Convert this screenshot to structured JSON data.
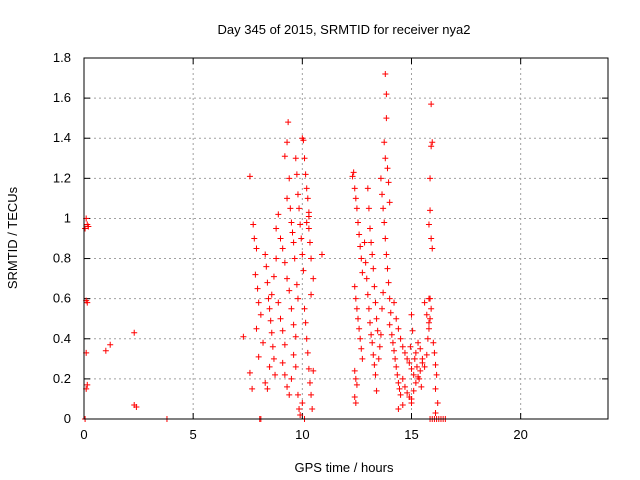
{
  "chart_data": {
    "type": "scatter",
    "title": "Day 345 of 2015, SRMTID for receiver nya2",
    "xlabel": "GPS time / hours",
    "ylabel": "SRMTID / TECUs",
    "xlim": [
      0,
      24
    ],
    "ylim": [
      0,
      1.8
    ],
    "xticks": [
      0,
      5,
      10,
      15,
      20
    ],
    "yticks": [
      0,
      0.2,
      0.4,
      0.6,
      0.8,
      1,
      1.2,
      1.4,
      1.6,
      1.8
    ],
    "xtick_labels": [
      "0",
      "5",
      "10",
      "15",
      "20"
    ],
    "ytick_labels": [
      "0",
      "0.2",
      "0.4",
      "0.6",
      "0.8",
      "1",
      "1.2",
      "1.4",
      "1.6",
      "1.8"
    ],
    "grid": true,
    "marker": "+",
    "color": "#ff0000",
    "points": [
      [
        0.05,
        0.95
      ],
      [
        0.1,
        1.0
      ],
      [
        0.15,
        0.97
      ],
      [
        0.2,
        0.96
      ],
      [
        0.1,
        0.59
      ],
      [
        0.15,
        0.58
      ],
      [
        0.1,
        0.33
      ],
      [
        0.15,
        0.17
      ],
      [
        0.1,
        0.15
      ],
      [
        0.05,
        0.0
      ],
      [
        1.0,
        0.34
      ],
      [
        1.2,
        0.37
      ],
      [
        2.3,
        0.43
      ],
      [
        2.3,
        0.07
      ],
      [
        2.4,
        0.06
      ],
      [
        3.8,
        0.0
      ],
      [
        7.3,
        0.41
      ],
      [
        7.6,
        0.23
      ],
      [
        7.7,
        0.15
      ],
      [
        7.6,
        1.21
      ],
      [
        8.05,
        0.0
      ],
      [
        8.1,
        0.0
      ],
      [
        7.75,
        0.97
      ],
      [
        7.8,
        0.9
      ],
      [
        7.9,
        0.85
      ],
      [
        7.85,
        0.72
      ],
      [
        7.95,
        0.65
      ],
      [
        8.0,
        0.58
      ],
      [
        8.1,
        0.52
      ],
      [
        7.9,
        0.45
      ],
      [
        8.2,
        0.38
      ],
      [
        8.0,
        0.31
      ],
      [
        8.3,
        0.82
      ],
      [
        8.35,
        0.76
      ],
      [
        8.4,
        0.68
      ],
      [
        8.45,
        0.6
      ],
      [
        8.5,
        0.55
      ],
      [
        8.55,
        0.49
      ],
      [
        8.6,
        0.43
      ],
      [
        8.65,
        0.36
      ],
      [
        8.7,
        0.3
      ],
      [
        8.75,
        0.22
      ],
      [
        8.3,
        0.18
      ],
      [
        8.4,
        0.15
      ],
      [
        8.5,
        0.26
      ],
      [
        8.6,
        0.62
      ],
      [
        8.7,
        0.71
      ],
      [
        8.8,
        0.8
      ],
      [
        8.9,
        0.58
      ],
      [
        9.0,
        0.5
      ],
      [
        9.1,
        0.44
      ],
      [
        9.2,
        0.37
      ],
      [
        8.8,
        0.95
      ],
      [
        8.9,
        1.02
      ],
      [
        9.0,
        0.9
      ],
      [
        9.1,
        0.85
      ],
      [
        9.2,
        0.78
      ],
      [
        9.3,
        0.7
      ],
      [
        9.4,
        0.64
      ],
      [
        9.5,
        0.55
      ],
      [
        9.6,
        0.47
      ],
      [
        9.7,
        0.41
      ],
      [
        9.2,
        1.31
      ],
      [
        9.3,
        1.38
      ],
      [
        9.35,
        1.48
      ],
      [
        9.4,
        1.2
      ],
      [
        9.3,
        1.1
      ],
      [
        9.45,
        1.05
      ],
      [
        9.5,
        0.98
      ],
      [
        9.55,
        0.93
      ],
      [
        9.6,
        0.88
      ],
      [
        9.65,
        0.8
      ],
      [
        9.1,
        0.28
      ],
      [
        9.2,
        0.22
      ],
      [
        9.3,
        0.16
      ],
      [
        9.4,
        0.12
      ],
      [
        9.5,
        0.2
      ],
      [
        9.6,
        0.32
      ],
      [
        9.7,
        0.26
      ],
      [
        9.8,
        0.12
      ],
      [
        9.85,
        0.05
      ],
      [
        9.9,
        0.02
      ],
      [
        9.7,
        1.3
      ],
      [
        9.75,
        1.22
      ],
      [
        9.8,
        1.12
      ],
      [
        9.85,
        1.05
      ],
      [
        9.9,
        0.97
      ],
      [
        9.95,
        0.9
      ],
      [
        10.0,
        0.82
      ],
      [
        10.05,
        0.74
      ],
      [
        9.75,
        0.67
      ],
      [
        9.8,
        0.6
      ],
      [
        10.0,
        1.4
      ],
      [
        10.05,
        1.39
      ],
      [
        10.1,
        1.3
      ],
      [
        10.15,
        1.22
      ],
      [
        10.2,
        1.15
      ],
      [
        10.25,
        1.1
      ],
      [
        10.3,
        1.03
      ],
      [
        10.3,
        0.95
      ],
      [
        10.35,
        0.88
      ],
      [
        10.4,
        0.8
      ],
      [
        10.1,
        0.55
      ],
      [
        10.15,
        0.48
      ],
      [
        10.2,
        0.4
      ],
      [
        10.25,
        0.33
      ],
      [
        10.3,
        0.25
      ],
      [
        10.35,
        0.18
      ],
      [
        10.4,
        0.12
      ],
      [
        10.45,
        0.05
      ],
      [
        10.5,
        0.24
      ],
      [
        10.4,
        0.62
      ],
      [
        10.5,
        0.7
      ],
      [
        10.9,
        0.82
      ],
      [
        10.2,
        0.98
      ],
      [
        10.3,
        1.01
      ],
      [
        10.1,
        0.0
      ],
      [
        10.0,
        0.08
      ],
      [
        12.3,
        1.21
      ],
      [
        12.35,
        1.23
      ],
      [
        12.4,
        1.15
      ],
      [
        12.45,
        1.1
      ],
      [
        12.5,
        1.05
      ],
      [
        12.55,
        0.98
      ],
      [
        12.6,
        0.92
      ],
      [
        12.65,
        0.86
      ],
      [
        12.7,
        0.8
      ],
      [
        12.75,
        0.73
      ],
      [
        12.4,
        0.66
      ],
      [
        12.45,
        0.6
      ],
      [
        12.5,
        0.55
      ],
      [
        12.55,
        0.5
      ],
      [
        12.6,
        0.45
      ],
      [
        12.65,
        0.4
      ],
      [
        12.7,
        0.35
      ],
      [
        12.75,
        0.3
      ],
      [
        12.4,
        0.24
      ],
      [
        12.45,
        0.2
      ],
      [
        12.5,
        0.17
      ],
      [
        12.4,
        0.11
      ],
      [
        12.45,
        0.08
      ],
      [
        12.85,
        0.88
      ],
      [
        12.9,
        0.78
      ],
      [
        12.95,
        0.7
      ],
      [
        13.0,
        0.62
      ],
      [
        13.05,
        0.55
      ],
      [
        13.1,
        0.48
      ],
      [
        13.15,
        0.42
      ],
      [
        13.0,
        1.15
      ],
      [
        13.05,
        1.05
      ],
      [
        13.1,
        0.95
      ],
      [
        13.15,
        0.88
      ],
      [
        13.2,
        0.82
      ],
      [
        13.25,
        0.75
      ],
      [
        13.3,
        0.66
      ],
      [
        13.35,
        0.58
      ],
      [
        13.4,
        0.5
      ],
      [
        13.45,
        0.44
      ],
      [
        13.2,
        0.38
      ],
      [
        13.25,
        0.32
      ],
      [
        13.3,
        0.27
      ],
      [
        13.35,
        0.22
      ],
      [
        13.4,
        0.14
      ],
      [
        13.5,
        0.3
      ],
      [
        13.55,
        0.36
      ],
      [
        13.6,
        0.42
      ],
      [
        13.65,
        0.55
      ],
      [
        13.7,
        0.63
      ],
      [
        13.6,
        1.2
      ],
      [
        13.65,
        1.12
      ],
      [
        13.7,
        1.05
      ],
      [
        13.75,
        0.98
      ],
      [
        13.8,
        0.9
      ],
      [
        13.85,
        0.82
      ],
      [
        13.9,
        0.75
      ],
      [
        13.95,
        0.68
      ],
      [
        14.0,
        0.6
      ],
      [
        14.05,
        0.53
      ],
      [
        13.8,
        1.72
      ],
      [
        13.85,
        1.62
      ],
      [
        13.85,
        1.5
      ],
      [
        13.75,
        1.38
      ],
      [
        13.8,
        1.3
      ],
      [
        13.9,
        1.25
      ],
      [
        13.95,
        1.18
      ],
      [
        14.0,
        1.08
      ],
      [
        14.0,
        0.47
      ],
      [
        14.1,
        0.42
      ],
      [
        14.15,
        0.38
      ],
      [
        14.2,
        0.34
      ],
      [
        14.25,
        0.3
      ],
      [
        14.3,
        0.26
      ],
      [
        14.35,
        0.22
      ],
      [
        14.4,
        0.18
      ],
      [
        14.45,
        0.15
      ],
      [
        14.5,
        0.12
      ],
      [
        14.2,
        0.58
      ],
      [
        14.3,
        0.5
      ],
      [
        14.4,
        0.45
      ],
      [
        14.5,
        0.4
      ],
      [
        14.6,
        0.36
      ],
      [
        14.7,
        0.33
      ],
      [
        14.8,
        0.3
      ],
      [
        14.9,
        0.28
      ],
      [
        15.0,
        0.25
      ],
      [
        15.1,
        0.22
      ],
      [
        14.6,
        0.2
      ],
      [
        14.7,
        0.16
      ],
      [
        14.8,
        0.13
      ],
      [
        14.9,
        0.11
      ],
      [
        15.0,
        0.1
      ],
      [
        15.1,
        0.14
      ],
      [
        15.2,
        0.18
      ],
      [
        15.3,
        0.21
      ],
      [
        15.4,
        0.24
      ],
      [
        15.5,
        0.28
      ],
      [
        15.2,
        0.33
      ],
      [
        15.3,
        0.38
      ],
      [
        15.4,
        0.35
      ],
      [
        15.5,
        0.3
      ],
      [
        15.6,
        0.26
      ],
      [
        15.7,
        0.32
      ],
      [
        15.75,
        0.4
      ],
      [
        15.8,
        0.45
      ],
      [
        15.85,
        0.5
      ],
      [
        15.9,
        0.55
      ],
      [
        15.6,
        0.58
      ],
      [
        15.7,
        0.52
      ],
      [
        15.8,
        0.48
      ],
      [
        15.0,
        0.52
      ],
      [
        15.05,
        0.44
      ],
      [
        14.95,
        0.36
      ],
      [
        15.15,
        0.3
      ],
      [
        15.25,
        0.26
      ],
      [
        15.35,
        0.2
      ],
      [
        15.45,
        0.16
      ],
      [
        15.8,
        0.97
      ],
      [
        15.85,
        1.04
      ],
      [
        15.9,
        0.9
      ],
      [
        15.95,
        0.85
      ],
      [
        15.85,
        1.2
      ],
      [
        15.9,
        1.36
      ],
      [
        15.95,
        1.38
      ],
      [
        15.9,
        1.57
      ],
      [
        15.8,
        0.6
      ],
      [
        15.85,
        0.6
      ],
      [
        16.0,
        0.38
      ],
      [
        16.05,
        0.33
      ],
      [
        16.1,
        0.27
      ],
      [
        16.15,
        0.22
      ],
      [
        16.1,
        0.15
      ],
      [
        16.2,
        0.08
      ],
      [
        16.1,
        0.03
      ],
      [
        14.4,
        0.05
      ],
      [
        14.6,
        0.07
      ],
      [
        15.0,
        0.08
      ],
      [
        15.85,
        0.0
      ],
      [
        15.95,
        0.0
      ],
      [
        16.05,
        0.0
      ],
      [
        16.15,
        0.0
      ],
      [
        16.25,
        0.0
      ],
      [
        16.35,
        0.0
      ],
      [
        16.45,
        0.0
      ],
      [
        16.55,
        0.0
      ]
    ]
  }
}
